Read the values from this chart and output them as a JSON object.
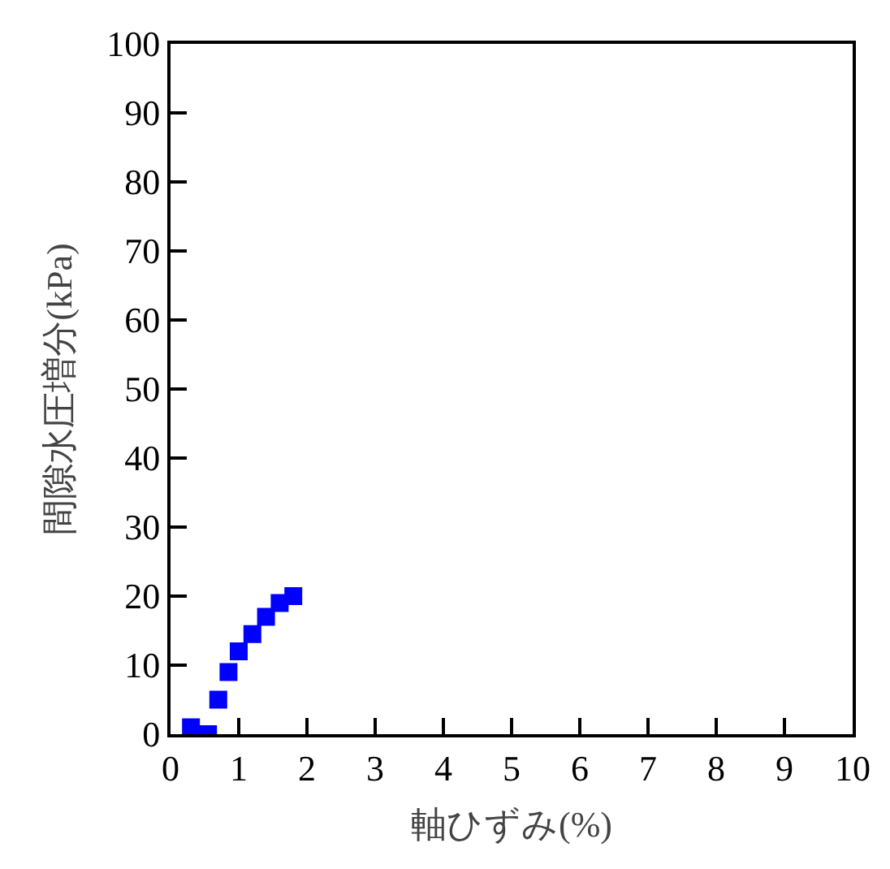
{
  "chart_data": {
    "type": "scatter",
    "xlabel": "軸ひずみ(%)",
    "ylabel": "間隙水圧増分(kPa)",
    "xlim": [
      0,
      10
    ],
    "ylim": [
      0,
      100
    ],
    "xticks": [
      0,
      1,
      2,
      3,
      4,
      5,
      6,
      7,
      8,
      9,
      10
    ],
    "yticks": [
      0,
      10,
      20,
      30,
      40,
      50,
      60,
      70,
      80,
      90,
      100
    ],
    "legend": false,
    "marker": "square",
    "x": [
      0.3,
      0.55,
      0.7,
      0.85,
      1.0,
      1.2,
      1.4,
      1.6,
      1.8
    ],
    "series": [
      {
        "color": "#0000ff",
        "values": [
          1,
          0,
          5,
          9,
          12,
          14.5,
          17,
          19,
          20
        ]
      }
    ]
  }
}
